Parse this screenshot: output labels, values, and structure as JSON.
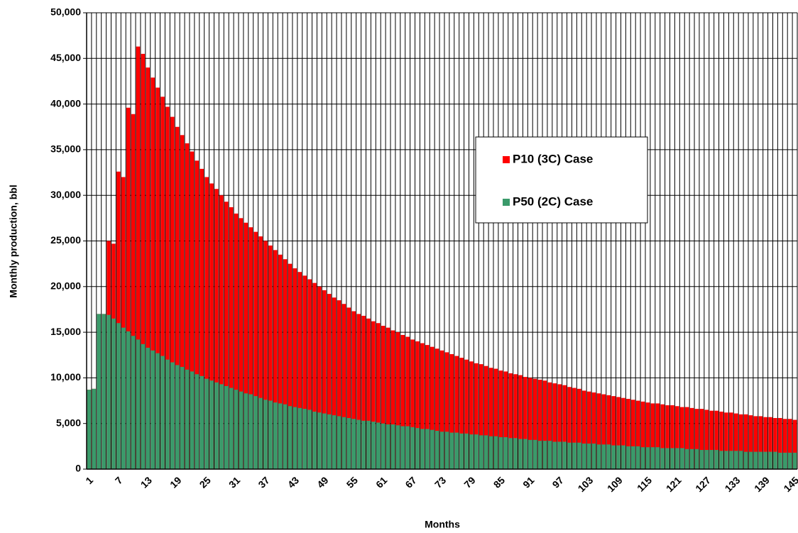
{
  "chart_data": {
    "type": "bar",
    "x_label": "Months",
    "y_label": "Monthly production, bbl",
    "categories": [
      1,
      null,
      null,
      null,
      null,
      null,
      7,
      null,
      null,
      null,
      null,
      null,
      13,
      null,
      null,
      null,
      null,
      null,
      19,
      null,
      null,
      null,
      null,
      null,
      25,
      null,
      null,
      null,
      null,
      null,
      31,
      null,
      null,
      null,
      null,
      null,
      37,
      null,
      null,
      null,
      null,
      null,
      43,
      null,
      null,
      null,
      null,
      null,
      49,
      null,
      null,
      null,
      null,
      null,
      55,
      null,
      null,
      null,
      null,
      null,
      61,
      null,
      null,
      null,
      null,
      null,
      67,
      null,
      null,
      null,
      null,
      null,
      73,
      null,
      null,
      null,
      null,
      null,
      79,
      null,
      null,
      null,
      null,
      null,
      85,
      null,
      null,
      null,
      null,
      null,
      91,
      null,
      null,
      null,
      null,
      null,
      97,
      null,
      null,
      null,
      null,
      null,
      103,
      null,
      null,
      null,
      null,
      null,
      109,
      null,
      null,
      null,
      null,
      null,
      115,
      null,
      null,
      null,
      null,
      null,
      121,
      null,
      null,
      null,
      null,
      null,
      127,
      null,
      null,
      null,
      null,
      null,
      133,
      null,
      null,
      null,
      null,
      null,
      139,
      null,
      null,
      null,
      null,
      null,
      145
    ],
    "series": [
      {
        "name": "P10 (3C) Case",
        "color": "#ff0000",
        "values": [
          8700,
          8800,
          17000,
          17000,
          25000,
          24700,
          32600,
          32000,
          39600,
          38900,
          46300,
          45500,
          44000,
          42900,
          41800,
          40800,
          39700,
          38600,
          37500,
          36600,
          35700,
          34800,
          33800,
          32900,
          32000,
          31300,
          30700,
          30000,
          29300,
          28700,
          28000,
          27500,
          27000,
          26500,
          26000,
          25500,
          25000,
          24500,
          24000,
          23500,
          23000,
          22500,
          22000,
          21600,
          21200,
          20800,
          20400,
          20000,
          19600,
          19200,
          18800,
          18500,
          18100,
          17700,
          17300,
          17000,
          16800,
          16500,
          16200,
          16000,
          15700,
          15500,
          15200,
          15000,
          14700,
          14500,
          14200,
          14000,
          13800,
          13600,
          13400,
          13200,
          13000,
          12800,
          12600,
          12400,
          12200,
          12000,
          11800,
          11600,
          11500,
          11300,
          11100,
          11000,
          10800,
          10700,
          10500,
          10400,
          10300,
          10100,
          10000,
          9900,
          9800,
          9700,
          9500,
          9400,
          9300,
          9200,
          9000,
          8900,
          8800,
          8600,
          8500,
          8400,
          8300,
          8200,
          8100,
          8000,
          7900,
          7800,
          7700,
          7600,
          7500,
          7400,
          7300,
          7200,
          7200,
          7100,
          7000,
          7000,
          6900,
          6800,
          6800,
          6700,
          6600,
          6600,
          6500,
          6400,
          6400,
          6300,
          6200,
          6200,
          6100,
          6000,
          6000,
          5900,
          5800,
          5800,
          5700,
          5700,
          5600,
          5600,
          5500,
          5500,
          5400
        ]
      },
      {
        "name": "P50 (2C) Case",
        "color": "#3a9a6a",
        "values": [
          8700,
          8800,
          17000,
          17000,
          16900,
          16500,
          16000,
          15500,
          15100,
          14600,
          14200,
          13700,
          13300,
          13000,
          12700,
          12400,
          12000,
          11700,
          11400,
          11200,
          10900,
          10700,
          10400,
          10200,
          9900,
          9700,
          9500,
          9300,
          9100,
          8900,
          8700,
          8500,
          8300,
          8200,
          8000,
          7800,
          7600,
          7500,
          7300,
          7200,
          7100,
          6900,
          6800,
          6700,
          6600,
          6500,
          6300,
          6200,
          6100,
          6000,
          5900,
          5800,
          5700,
          5600,
          5500,
          5400,
          5300,
          5300,
          5200,
          5100,
          5000,
          4900,
          4900,
          4800,
          4700,
          4700,
          4600,
          4500,
          4400,
          4400,
          4300,
          4200,
          4100,
          4100,
          4000,
          4000,
          3900,
          3900,
          3800,
          3800,
          3700,
          3700,
          3600,
          3600,
          3500,
          3500,
          3400,
          3400,
          3300,
          3300,
          3200,
          3200,
          3100,
          3100,
          3100,
          3000,
          3000,
          3000,
          2900,
          2900,
          2900,
          2800,
          2800,
          2800,
          2700,
          2700,
          2700,
          2600,
          2600,
          2600,
          2500,
          2500,
          2500,
          2400,
          2400,
          2400,
          2400,
          2300,
          2300,
          2300,
          2300,
          2300,
          2200,
          2200,
          2200,
          2100,
          2100,
          2100,
          2100,
          2000,
          2000,
          2000,
          2000,
          2000,
          1900,
          1900,
          1900,
          1900,
          1900,
          1900,
          1900,
          1800,
          1800,
          1800,
          1800
        ]
      }
    ],
    "ylim": [
      0,
      50000
    ],
    "yticks": [
      0,
      {
        "value": 5000,
        "label": "5,000"
      },
      {
        "value": 10000,
        "label": "10,000"
      },
      {
        "value": 15000,
        "label": "15,000"
      },
      {
        "value": 20000,
        "label": "20,000"
      },
      {
        "value": 25000,
        "label": "25,000"
      },
      {
        "value": 30000,
        "label": "30,000"
      },
      {
        "value": 35000,
        "label": "35,000"
      },
      {
        "value": 40000,
        "label": "40,000"
      },
      {
        "value": 45000,
        "label": "45,000"
      },
      {
        "value": 50000,
        "label": "50,000"
      }
    ],
    "grid": true
  }
}
